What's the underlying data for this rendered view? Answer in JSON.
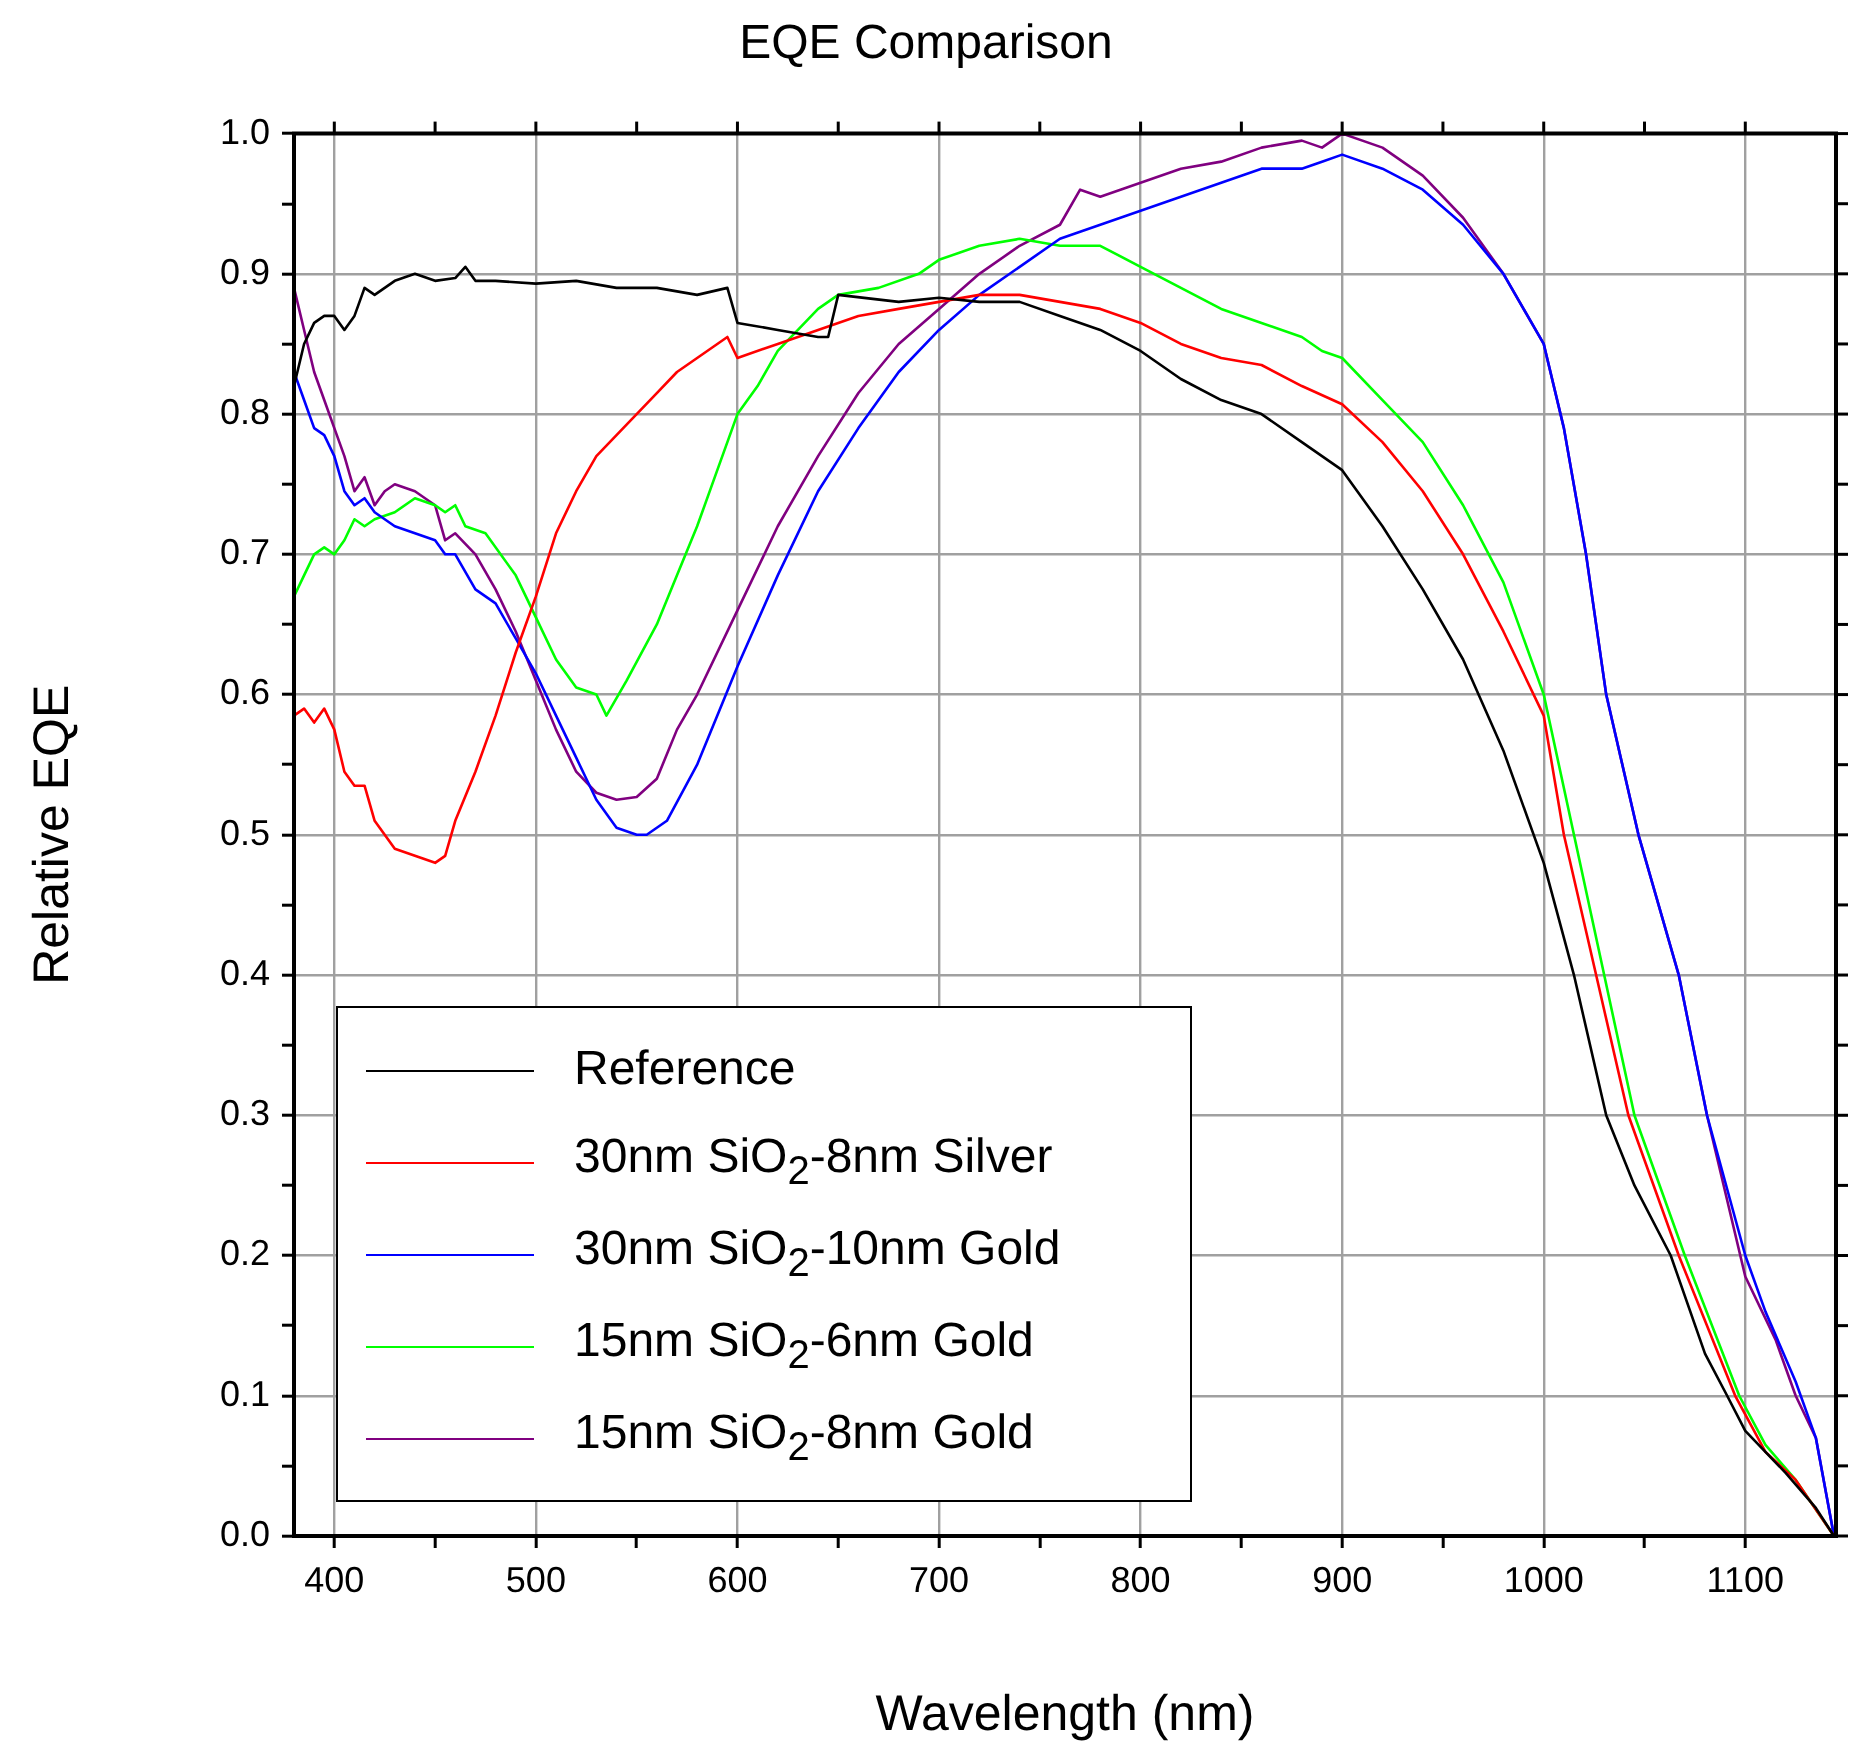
{
  "chart_data": {
    "type": "line",
    "title": "EQE Comparison",
    "xlabel": "Wavelength (nm)",
    "ylabel": "Relative EQE",
    "xlim": [
      380,
      1145
    ],
    "ylim": [
      0,
      1
    ],
    "xticks": [
      400,
      {
        "value": 450,
        "label": null
      },
      500,
      {
        "value": 550,
        "label": null
      },
      600,
      {
        "value": 650,
        "label": null
      },
      700,
      {
        "value": 750,
        "label": null
      },
      800,
      {
        "value": 850,
        "label": null
      },
      900,
      {
        "value": 950,
        "label": null
      },
      1000,
      {
        "value": 1050,
        "label": null
      },
      1100
    ],
    "yticks": [
      {
        "value": 0,
        "label": "0.0"
      },
      {
        "value": 0.05,
        "label": null
      },
      {
        "value": 0.1,
        "label": "0.1"
      },
      {
        "value": 0.15,
        "label": null
      },
      {
        "value": 0.2,
        "label": "0.2"
      },
      {
        "value": 0.25,
        "label": null
      },
      {
        "value": 0.3,
        "label": "0.3"
      },
      {
        "value": 0.35,
        "label": null
      },
      {
        "value": 0.4,
        "label": "0.4"
      },
      {
        "value": 0.45,
        "label": null
      },
      {
        "value": 0.5,
        "label": "0.5"
      },
      {
        "value": 0.55,
        "label": null
      },
      {
        "value": 0.6,
        "label": "0.6"
      },
      {
        "value": 0.65,
        "label": null
      },
      {
        "value": 0.7,
        "label": "0.7"
      },
      {
        "value": 0.75,
        "label": null
      },
      {
        "value": 0.8,
        "label": "0.8"
      },
      {
        "value": 0.85,
        "label": null
      },
      {
        "value": 0.9,
        "label": "0.9"
      },
      {
        "value": 0.95,
        "label": null
      },
      {
        "value": 1,
        "label": "1.0"
      }
    ],
    "grid": true,
    "legend": "bottom left",
    "marker": "none",
    "line_style": "solid",
    "series": [
      {
        "name": "Reference",
        "color": "#000000",
        "x": [
          380,
          385,
          390,
          395,
          400,
          405,
          410,
          415,
          420,
          425,
          430,
          440,
          450,
          460,
          465,
          470,
          480,
          500,
          520,
          540,
          560,
          580,
          595,
          600,
          620,
          640,
          645,
          650,
          680,
          700,
          720,
          740,
          760,
          780,
          800,
          820,
          840,
          860,
          880,
          900,
          920,
          940,
          960,
          980,
          1000,
          1015,
          1031,
          1045,
          1063,
          1080,
          1091,
          1100,
          1120,
          1135,
          1144
        ],
        "values": [
          0.82,
          0.85,
          0.865,
          0.87,
          0.87,
          0.86,
          0.87,
          0.89,
          0.885,
          0.89,
          0.895,
          0.9,
          0.895,
          0.897,
          0.905,
          0.895,
          0.895,
          0.893,
          0.895,
          0.89,
          0.89,
          0.885,
          0.89,
          0.865,
          0.86,
          0.855,
          0.855,
          0.885,
          0.88,
          0.883,
          0.88,
          0.88,
          0.87,
          0.86,
          0.845,
          0.825,
          0.81,
          0.8,
          0.78,
          0.76,
          0.72,
          0.675,
          0.625,
          0.56,
          0.48,
          0.4,
          0.3,
          0.25,
          0.2,
          0.13,
          0.1,
          0.075,
          0.045,
          0.02,
          0
        ]
      },
      {
        "name": "30nm SiO$_{2}$-8nm Silver",
        "color": "#ff0000",
        "x": [
          380,
          385,
          390,
          395,
          400,
          405,
          410,
          415,
          420,
          430,
          440,
          450,
          455,
          460,
          470,
          480,
          490,
          500,
          510,
          520,
          530,
          540,
          550,
          560,
          570,
          580,
          590,
          595,
          600,
          620,
          640,
          660,
          680,
          700,
          720,
          740,
          760,
          780,
          800,
          820,
          840,
          860,
          880,
          900,
          920,
          940,
          960,
          980,
          1000,
          1010,
          1026,
          1042,
          1067,
          1095,
          1110,
          1125,
          1144
        ],
        "values": [
          0.585,
          0.59,
          0.58,
          0.59,
          0.575,
          0.545,
          0.535,
          0.535,
          0.51,
          0.49,
          0.485,
          0.48,
          0.485,
          0.51,
          0.545,
          0.585,
          0.63,
          0.67,
          0.715,
          0.745,
          0.77,
          0.785,
          0.8,
          0.815,
          0.83,
          0.84,
          0.85,
          0.855,
          0.84,
          0.85,
          0.86,
          0.87,
          0.875,
          0.88,
          0.885,
          0.885,
          0.88,
          0.875,
          0.865,
          0.85,
          0.84,
          0.835,
          0.82,
          0.807,
          0.78,
          0.745,
          0.7,
          0.645,
          0.585,
          0.5,
          0.4,
          0.3,
          0.2,
          0.1,
          0.06,
          0.04,
          0
        ]
      },
      {
        "name": "30nm SiO$_{2}$-10nm Gold",
        "color": "#0000ff",
        "x": [
          380,
          385,
          390,
          395,
          400,
          405,
          410,
          415,
          420,
          430,
          440,
          450,
          455,
          460,
          470,
          480,
          490,
          500,
          510,
          520,
          530,
          540,
          550,
          555,
          565,
          580,
          600,
          620,
          640,
          660,
          680,
          700,
          720,
          740,
          760,
          780,
          800,
          820,
          840,
          860,
          880,
          890,
          900,
          920,
          940,
          960,
          980,
          1000,
          1010,
          1021,
          1031,
          1047,
          1067,
          1081,
          1100,
          1110,
          1125,
          1135,
          1144
        ],
        "values": [
          0.83,
          0.81,
          0.79,
          0.785,
          0.77,
          0.745,
          0.735,
          0.74,
          0.73,
          0.72,
          0.715,
          0.71,
          0.7,
          0.7,
          0.675,
          0.665,
          0.64,
          0.615,
          0.585,
          0.555,
          0.525,
          0.505,
          0.5,
          0.5,
          0.51,
          0.55,
          0.62,
          0.685,
          0.745,
          0.79,
          0.83,
          0.86,
          0.885,
          0.905,
          0.925,
          0.935,
          0.945,
          0.955,
          0.965,
          0.975,
          0.975,
          0.98,
          0.985,
          0.975,
          0.96,
          0.935,
          0.9,
          0.85,
          0.79,
          0.7,
          0.6,
          0.5,
          0.4,
          0.3,
          0.2,
          0.16,
          0.11,
          0.07,
          0
        ]
      },
      {
        "name": "15nm SiO$_{2}$-6nm Gold",
        "color": "#00ff00",
        "x": [
          380,
          385,
          390,
          395,
          400,
          405,
          410,
          415,
          420,
          430,
          440,
          450,
          455,
          460,
          465,
          475,
          490,
          500,
          510,
          520,
          530,
          535,
          545,
          560,
          570,
          580,
          590,
          600,
          610,
          620,
          630,
          640,
          650,
          670,
          690,
          700,
          720,
          740,
          760,
          780,
          800,
          820,
          840,
          860,
          880,
          890,
          900,
          920,
          940,
          960,
          980,
          1000,
          1015,
          1030,
          1045,
          1070,
          1097,
          1110,
          1125,
          1144
        ],
        "values": [
          0.67,
          0.685,
          0.7,
          0.705,
          0.7,
          0.71,
          0.725,
          0.72,
          0.725,
          0.73,
          0.74,
          0.735,
          0.73,
          0.735,
          0.72,
          0.715,
          0.685,
          0.655,
          0.625,
          0.605,
          0.6,
          0.585,
          0.61,
          0.65,
          0.685,
          0.72,
          0.76,
          0.8,
          0.82,
          0.845,
          0.86,
          0.875,
          0.885,
          0.89,
          0.9,
          0.91,
          0.92,
          0.925,
          0.92,
          0.92,
          0.905,
          0.89,
          0.875,
          0.865,
          0.855,
          0.845,
          0.84,
          0.81,
          0.78,
          0.735,
          0.68,
          0.6,
          0.5,
          0.4,
          0.3,
          0.2,
          0.1,
          0.065,
          0.04,
          0
        ]
      },
      {
        "name": "15nm SiO$_{2}$-8nm Gold",
        "color": "#800080",
        "x": [
          380,
          385,
          390,
          395,
          400,
          405,
          410,
          415,
          420,
          425,
          430,
          440,
          450,
          455,
          460,
          470,
          480,
          490,
          500,
          510,
          520,
          530,
          540,
          550,
          560,
          570,
          580,
          600,
          620,
          640,
          660,
          680,
          700,
          720,
          740,
          760,
          770,
          780,
          800,
          820,
          840,
          860,
          880,
          890,
          900,
          920,
          940,
          960,
          980,
          1000,
          1010,
          1021,
          1031,
          1047,
          1067,
          1081,
          1100,
          1115,
          1125,
          1135,
          1144
        ],
        "values": [
          0.89,
          0.86,
          0.83,
          0.81,
          0.79,
          0.77,
          0.745,
          0.755,
          0.735,
          0.745,
          0.75,
          0.745,
          0.735,
          0.71,
          0.715,
          0.7,
          0.675,
          0.645,
          0.61,
          0.575,
          0.545,
          0.53,
          0.525,
          0.527,
          0.54,
          0.575,
          0.6,
          0.66,
          0.72,
          0.77,
          0.815,
          0.85,
          0.875,
          0.9,
          0.92,
          0.935,
          0.96,
          0.955,
          0.965,
          0.975,
          0.98,
          0.99,
          0.995,
          0.99,
          1,
          0.99,
          0.97,
          0.94,
          0.9,
          0.85,
          0.79,
          0.7,
          0.6,
          0.5,
          0.4,
          0.3,
          0.185,
          0.14,
          0.1,
          0.07,
          0
        ]
      }
    ]
  }
}
